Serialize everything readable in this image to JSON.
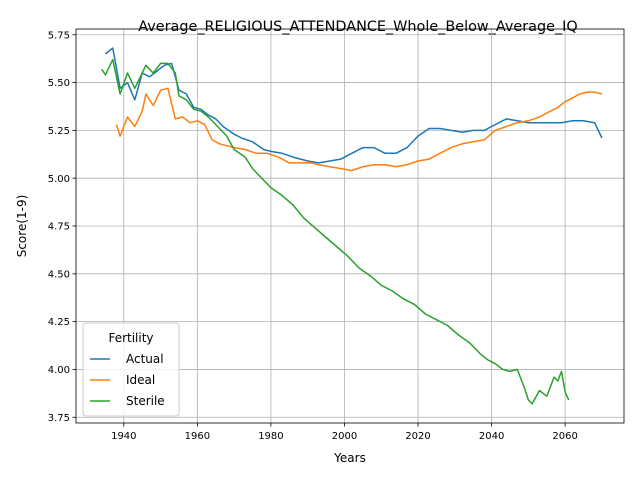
{
  "chart_data": {
    "type": "line",
    "title": "Average_RELIGIOUS_ATTENDANCE_Whole_Below_Average_IQ",
    "xlabel": "Years",
    "ylabel": "Score(1-9)",
    "xlim": [
      1927,
      2076
    ],
    "ylim": [
      3.72,
      5.78
    ],
    "xticks": [
      1940,
      1960,
      1980,
      2000,
      2020,
      2040,
      2060
    ],
    "yticks": [
      3.75,
      4.0,
      4.25,
      4.5,
      4.75,
      5.0,
      5.25,
      5.5,
      5.75
    ],
    "ytick_labels": [
      "3.75",
      "4.00",
      "4.25",
      "4.50",
      "4.75",
      "5.00",
      "5.25",
      "5.50",
      "5.75"
    ],
    "grid": true,
    "legend": {
      "title": "Fertility",
      "position": "bottom-left"
    },
    "series": [
      {
        "name": "Actual",
        "color": "#1f77b4",
        "points": [
          [
            1935,
            5.65
          ],
          [
            1937,
            5.68
          ],
          [
            1939,
            5.47
          ],
          [
            1941,
            5.5
          ],
          [
            1943,
            5.41
          ],
          [
            1945,
            5.55
          ],
          [
            1947,
            5.53
          ],
          [
            1949,
            5.56
          ],
          [
            1951,
            5.59
          ],
          [
            1953,
            5.6
          ],
          [
            1955,
            5.46
          ],
          [
            1957,
            5.44
          ],
          [
            1959,
            5.37
          ],
          [
            1961,
            5.36
          ],
          [
            1963,
            5.33
          ],
          [
            1965,
            5.31
          ],
          [
            1967,
            5.27
          ],
          [
            1970,
            5.23
          ],
          [
            1972,
            5.21
          ],
          [
            1975,
            5.19
          ],
          [
            1978,
            5.15
          ],
          [
            1980,
            5.14
          ],
          [
            1983,
            5.13
          ],
          [
            1986,
            5.11
          ],
          [
            1990,
            5.09
          ],
          [
            1993,
            5.08
          ],
          [
            1996,
            5.09
          ],
          [
            1999,
            5.1
          ],
          [
            2002,
            5.13
          ],
          [
            2005,
            5.16
          ],
          [
            2008,
            5.16
          ],
          [
            2011,
            5.13
          ],
          [
            2014,
            5.13
          ],
          [
            2017,
            5.16
          ],
          [
            2020,
            5.22
          ],
          [
            2023,
            5.26
          ],
          [
            2026,
            5.26
          ],
          [
            2029,
            5.25
          ],
          [
            2032,
            5.24
          ],
          [
            2035,
            5.25
          ],
          [
            2038,
            5.25
          ],
          [
            2040,
            5.27
          ],
          [
            2042,
            5.29
          ],
          [
            2044,
            5.31
          ],
          [
            2047,
            5.3
          ],
          [
            2050,
            5.29
          ],
          [
            2053,
            5.29
          ],
          [
            2056,
            5.29
          ],
          [
            2059,
            5.29
          ],
          [
            2062,
            5.3
          ],
          [
            2065,
            5.3
          ],
          [
            2068,
            5.29
          ],
          [
            2070,
            5.21
          ]
        ]
      },
      {
        "name": "Ideal",
        "color": "#ff7f0e",
        "points": [
          [
            1938,
            5.28
          ],
          [
            1939,
            5.22
          ],
          [
            1941,
            5.32
          ],
          [
            1943,
            5.27
          ],
          [
            1945,
            5.35
          ],
          [
            1946,
            5.44
          ],
          [
            1948,
            5.38
          ],
          [
            1950,
            5.46
          ],
          [
            1952,
            5.47
          ],
          [
            1954,
            5.31
          ],
          [
            1956,
            5.32
          ],
          [
            1958,
            5.29
          ],
          [
            1960,
            5.3
          ],
          [
            1962,
            5.28
          ],
          [
            1964,
            5.2
          ],
          [
            1966,
            5.18
          ],
          [
            1968,
            5.17
          ],
          [
            1970,
            5.16
          ],
          [
            1973,
            5.15
          ],
          [
            1976,
            5.13
          ],
          [
            1979,
            5.13
          ],
          [
            1982,
            5.11
          ],
          [
            1985,
            5.08
          ],
          [
            1988,
            5.08
          ],
          [
            1991,
            5.08
          ],
          [
            1993,
            5.07
          ],
          [
            1996,
            5.06
          ],
          [
            1999,
            5.05
          ],
          [
            2002,
            5.04
          ],
          [
            2005,
            5.06
          ],
          [
            2008,
            5.07
          ],
          [
            2011,
            5.07
          ],
          [
            2014,
            5.06
          ],
          [
            2017,
            5.07
          ],
          [
            2020,
            5.09
          ],
          [
            2023,
            5.1
          ],
          [
            2026,
            5.13
          ],
          [
            2029,
            5.16
          ],
          [
            2032,
            5.18
          ],
          [
            2035,
            5.19
          ],
          [
            2038,
            5.2
          ],
          [
            2041,
            5.25
          ],
          [
            2044,
            5.27
          ],
          [
            2047,
            5.29
          ],
          [
            2050,
            5.3
          ],
          [
            2053,
            5.32
          ],
          [
            2056,
            5.35
          ],
          [
            2058,
            5.37
          ],
          [
            2060,
            5.4
          ],
          [
            2062,
            5.42
          ],
          [
            2064,
            5.44
          ],
          [
            2066,
            5.45
          ],
          [
            2068,
            5.45
          ],
          [
            2070,
            5.44
          ]
        ]
      },
      {
        "name": "Sterile",
        "color": "#2ca02c",
        "points": [
          [
            1934,
            5.57
          ],
          [
            1935,
            5.54
          ],
          [
            1937,
            5.62
          ],
          [
            1939,
            5.44
          ],
          [
            1941,
            5.55
          ],
          [
            1943,
            5.47
          ],
          [
            1945,
            5.55
          ],
          [
            1946,
            5.59
          ],
          [
            1948,
            5.55
          ],
          [
            1950,
            5.6
          ],
          [
            1952,
            5.6
          ],
          [
            1954,
            5.55
          ],
          [
            1955,
            5.43
          ],
          [
            1957,
            5.41
          ],
          [
            1959,
            5.36
          ],
          [
            1961,
            5.35
          ],
          [
            1963,
            5.32
          ],
          [
            1965,
            5.28
          ],
          [
            1968,
            5.22
          ],
          [
            1970,
            5.15
          ],
          [
            1973,
            5.11
          ],
          [
            1975,
            5.05
          ],
          [
            1978,
            4.99
          ],
          [
            1980,
            4.95
          ],
          [
            1983,
            4.91
          ],
          [
            1986,
            4.86
          ],
          [
            1989,
            4.79
          ],
          [
            1992,
            4.74
          ],
          [
            1995,
            4.69
          ],
          [
            1998,
            4.64
          ],
          [
            2001,
            4.59
          ],
          [
            2004,
            4.53
          ],
          [
            2007,
            4.49
          ],
          [
            2010,
            4.44
          ],
          [
            2013,
            4.41
          ],
          [
            2016,
            4.37
          ],
          [
            2019,
            4.34
          ],
          [
            2022,
            4.29
          ],
          [
            2025,
            4.26
          ],
          [
            2028,
            4.23
          ],
          [
            2031,
            4.18
          ],
          [
            2034,
            4.14
          ],
          [
            2037,
            4.08
          ],
          [
            2039,
            4.05
          ],
          [
            2041,
            4.03
          ],
          [
            2043,
            4.0
          ],
          [
            2045,
            3.99
          ],
          [
            2047,
            4.0
          ],
          [
            2049,
            3.9
          ],
          [
            2050,
            3.84
          ],
          [
            2051,
            3.82
          ],
          [
            2053,
            3.89
          ],
          [
            2055,
            3.86
          ],
          [
            2057,
            3.96
          ],
          [
            2058,
            3.94
          ],
          [
            2059,
            3.99
          ],
          [
            2060,
            3.88
          ],
          [
            2061,
            3.84
          ]
        ]
      }
    ]
  }
}
